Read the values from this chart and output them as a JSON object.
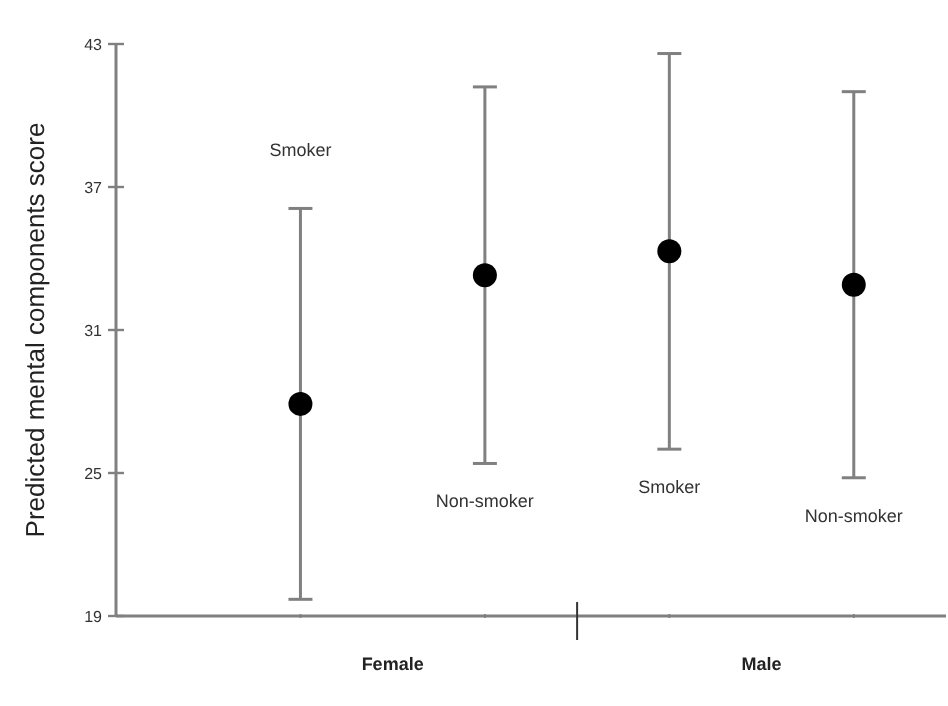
{
  "chart_data": {
    "type": "scatter",
    "ylabel": "Predicted mental components score",
    "categories": [
      "Smoker",
      "Non-smoker",
      "Smoker",
      "Non-smoker"
    ],
    "values": [
      27.9,
      33.3,
      34.3,
      32.9
    ],
    "errors": [
      8.2,
      7.9,
      8.3,
      8.1
    ],
    "color": "#000000",
    "marker": "circle",
    "ylim": [
      19,
      43
    ],
    "yticks": [
      19,
      25,
      31,
      37,
      43
    ],
    "annotations": [
      "Female",
      "Male"
    ],
    "grid": false
  }
}
